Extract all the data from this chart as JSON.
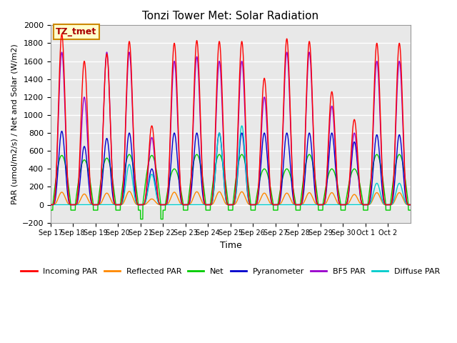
{
  "title": "Tonzi Tower Met: Solar Radiation",
  "xlabel": "Time",
  "ylabel": "PAR (umol/m2/s) / Net and Solar (W/m2)",
  "ylim": [
    -200,
    2000
  ],
  "xlim": [
    0,
    16
  ],
  "background_color": "#e8e8e8",
  "grid_color": "#ffffff",
  "annotation_text": "TZ_tmet",
  "annotation_bg": "#ffffcc",
  "annotation_border": "#cc8800",
  "tick_labels": [
    "Sep 17",
    "Sep 18",
    "Sep 19",
    "Sep 20",
    "Sep 21",
    "Sep 22",
    "Sep 23",
    "Sep 24",
    "Sep 25",
    "Sep 26",
    "Sep 27",
    "Sep 28",
    "Sep 29",
    "Sep 30",
    "Oct 1",
    "Oct 2"
  ],
  "legend_entries": [
    "Incoming PAR",
    "Reflected PAR",
    "Net",
    "Pyranometer",
    "BF5 PAR",
    "Diffuse PAR"
  ],
  "legend_colors": [
    "#ff0000",
    "#ff8800",
    "#00cc00",
    "#0000cc",
    "#9900cc",
    "#00cccc"
  ],
  "n_days": 16,
  "day_peaks": [
    1900,
    1600,
    1680,
    1820,
    880,
    1800,
    1830,
    1820,
    1820,
    1410,
    1850,
    1820,
    1260,
    950,
    1800,
    1800
  ],
  "bf5_peaks": [
    1700,
    1200,
    1700,
    1700,
    750,
    1600,
    1650,
    1600,
    1600,
    1200,
    1700,
    1700,
    1100,
    800,
    1600,
    1600
  ],
  "pyr_peaks": [
    820,
    650,
    740,
    800,
    400,
    800,
    800,
    800,
    800,
    800,
    800,
    800,
    800,
    700,
    780,
    780
  ],
  "ref_peaks": [
    140,
    120,
    130,
    150,
    65,
    140,
    145,
    145,
    145,
    130,
    130,
    135,
    135,
    115,
    135,
    135
  ],
  "net_peaks": [
    550,
    500,
    520,
    560,
    550,
    400,
    560,
    560,
    560,
    400,
    400,
    560,
    400,
    400,
    560,
    560
  ],
  "net_neg": [
    -60,
    -60,
    -60,
    -60,
    -160,
    -60,
    -60,
    -60,
    -60,
    -60,
    -60,
    -60,
    -60,
    -60,
    -60,
    -60
  ],
  "diffuse_peaks": [
    0,
    0,
    0,
    450,
    340,
    0,
    0,
    800,
    880,
    0,
    0,
    0,
    0,
    0,
    240,
    240
  ]
}
